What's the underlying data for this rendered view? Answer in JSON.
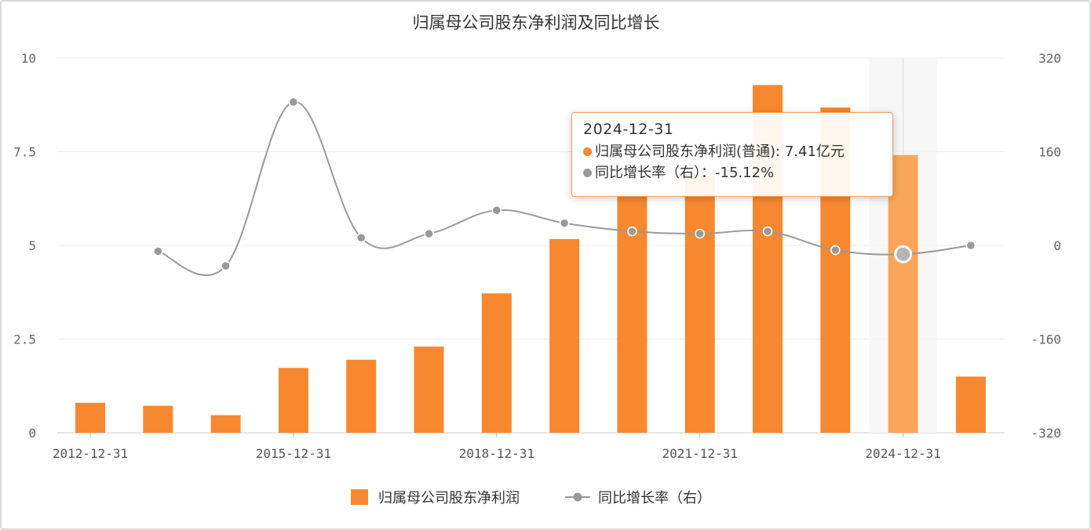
{
  "chart_data": {
    "type": "bar",
    "title": "归属母公司股东净利润及同比增长",
    "categories": [
      "2012-12-31",
      "2013-12-31",
      "2014-12-31",
      "2015-12-31",
      "2016-12-31",
      "2017-12-31",
      "2018-12-31",
      "2019-12-31",
      "2020-12-31",
      "2021-12-31",
      "2022-12-31",
      "2023-12-31",
      "2024-12-31",
      "2025-12-31"
    ],
    "x_tick_labels": [
      "2012-12-31",
      "2015-12-31",
      "2018-12-31",
      "2021-12-31",
      "2024-12-31"
    ],
    "series": [
      {
        "name": "归属母公司股东净利润",
        "type": "bar",
        "axis": "left",
        "color": "#f7882f",
        "highlight_color": "#f9a65a",
        "values": [
          0.8,
          0.72,
          0.47,
          1.73,
          1.95,
          2.3,
          3.72,
          5.17,
          6.35,
          6.9,
          9.28,
          8.68,
          7.41,
          1.5
        ]
      },
      {
        "name": "同比增长率（右）",
        "type": "line",
        "axis": "right",
        "color": "#999999",
        "values": [
          null,
          -10,
          -35,
          245,
          13,
          20,
          60,
          38,
          24,
          20,
          24,
          -8,
          -15.12,
          0
        ]
      }
    ],
    "left_axis": {
      "ylim": [
        0,
        10
      ],
      "ticks": [
        "0",
        "2.5",
        "5",
        "7.5",
        "10"
      ]
    },
    "right_axis": {
      "ylim": [
        -320,
        320
      ],
      "ticks": [
        "-320",
        "-160",
        "0",
        "160",
        "320"
      ]
    },
    "legend": {
      "position": "bottom",
      "items": [
        "归属母公司股东净利润",
        "同比增长率（右）"
      ]
    },
    "highlight_index": 12,
    "tooltip": {
      "date": "2024-12-31",
      "row1_label": "归属母公司股东净利润(普通):",
      "row1_value": "7.41亿元",
      "row2_label": "同比增长率（右）：",
      "row2_value": "-15.12%"
    }
  }
}
